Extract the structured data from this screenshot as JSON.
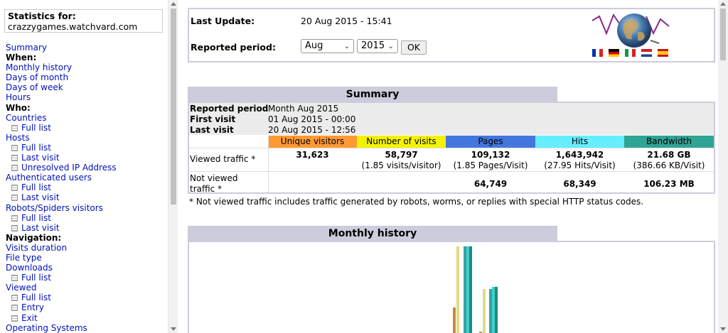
{
  "sidebar": {
    "stats_title": "Statistics for:",
    "site": "crazzygames.watchvard.com",
    "items": [
      {
        "label": "Summary",
        "kind": "link"
      },
      {
        "label": "When:",
        "kind": "head"
      },
      {
        "label": "Monthly history",
        "kind": "link"
      },
      {
        "label": "Days of month",
        "kind": "link"
      },
      {
        "label": "Days of week",
        "kind": "link"
      },
      {
        "label": "Hours",
        "kind": "link"
      },
      {
        "label": "Who:",
        "kind": "head"
      },
      {
        "label": "Countries",
        "kind": "link"
      },
      {
        "label": "Full list",
        "kind": "sub"
      },
      {
        "label": "Hosts",
        "kind": "link"
      },
      {
        "label": "Full list",
        "kind": "sub"
      },
      {
        "label": "Last visit",
        "kind": "sub"
      },
      {
        "label": "Unresolved IP Address",
        "kind": "sub"
      },
      {
        "label": "Authenticated users",
        "kind": "link"
      },
      {
        "label": "Full list",
        "kind": "sub"
      },
      {
        "label": "Last visit",
        "kind": "sub"
      },
      {
        "label": "Robots/Spiders visitors",
        "kind": "link"
      },
      {
        "label": "Full list",
        "kind": "sub"
      },
      {
        "label": "Last visit",
        "kind": "sub"
      },
      {
        "label": "Navigation:",
        "kind": "head"
      },
      {
        "label": "Visits duration",
        "kind": "link"
      },
      {
        "label": "File type",
        "kind": "link"
      },
      {
        "label": "Downloads",
        "kind": "link"
      },
      {
        "label": "Full list",
        "kind": "sub"
      },
      {
        "label": "Viewed",
        "kind": "link"
      },
      {
        "label": "Full list",
        "kind": "sub"
      },
      {
        "label": "Entry",
        "kind": "sub"
      },
      {
        "label": "Exit",
        "kind": "sub"
      },
      {
        "label": "Operating Systems",
        "kind": "link"
      }
    ]
  },
  "header": {
    "last_update_label": "Last Update:",
    "last_update_value": "20 Aug 2015 - 15:41",
    "period_label": "Reported period:",
    "month_value": "Aug",
    "year_value": "2015",
    "ok_label": "OK"
  },
  "summary": {
    "title": "Summary",
    "reported_period_label": "Reported period",
    "reported_period_value": "Month Aug 2015",
    "first_visit_label": "First visit",
    "first_visit_value": "01 Aug 2015 - 00:00",
    "last_visit_label": "Last visit",
    "last_visit_value": "20 Aug 2015 - 12:56",
    "columns": [
      {
        "label": "Unique visitors",
        "color": "#ff9933"
      },
      {
        "label": "Number of visits",
        "color": "#f3f300"
      },
      {
        "label": "Pages",
        "color": "#4477dd"
      },
      {
        "label": "Hits",
        "color": "#66eeff"
      },
      {
        "label": "Bandwidth",
        "color": "#2ea495"
      }
    ],
    "viewed_label": "Viewed traffic *",
    "viewed": [
      {
        "main": "31,623",
        "sub": ""
      },
      {
        "main": "58,797",
        "sub": "(1.85 visits/visitor)"
      },
      {
        "main": "109,132",
        "sub": "(1.85 Pages/Visit)"
      },
      {
        "main": "1,643,942",
        "sub": "(27.95 Hits/Visit)"
      },
      {
        "main": "21.68 GB",
        "sub": "(386.66 KB/Visit)"
      }
    ],
    "not_viewed_label_1": "Not viewed",
    "not_viewed_label_2": "traffic *",
    "not_viewed": [
      "",
      "",
      "64,749",
      "68,349",
      "106.23 MB"
    ],
    "note": "* Not viewed traffic includes traffic generated by robots, worms, or replies with special HTTP status codes."
  },
  "monthly": {
    "title": "Monthly history"
  },
  "colors": {
    "title_band": "#ccccdd",
    "link": "#0011bb"
  }
}
